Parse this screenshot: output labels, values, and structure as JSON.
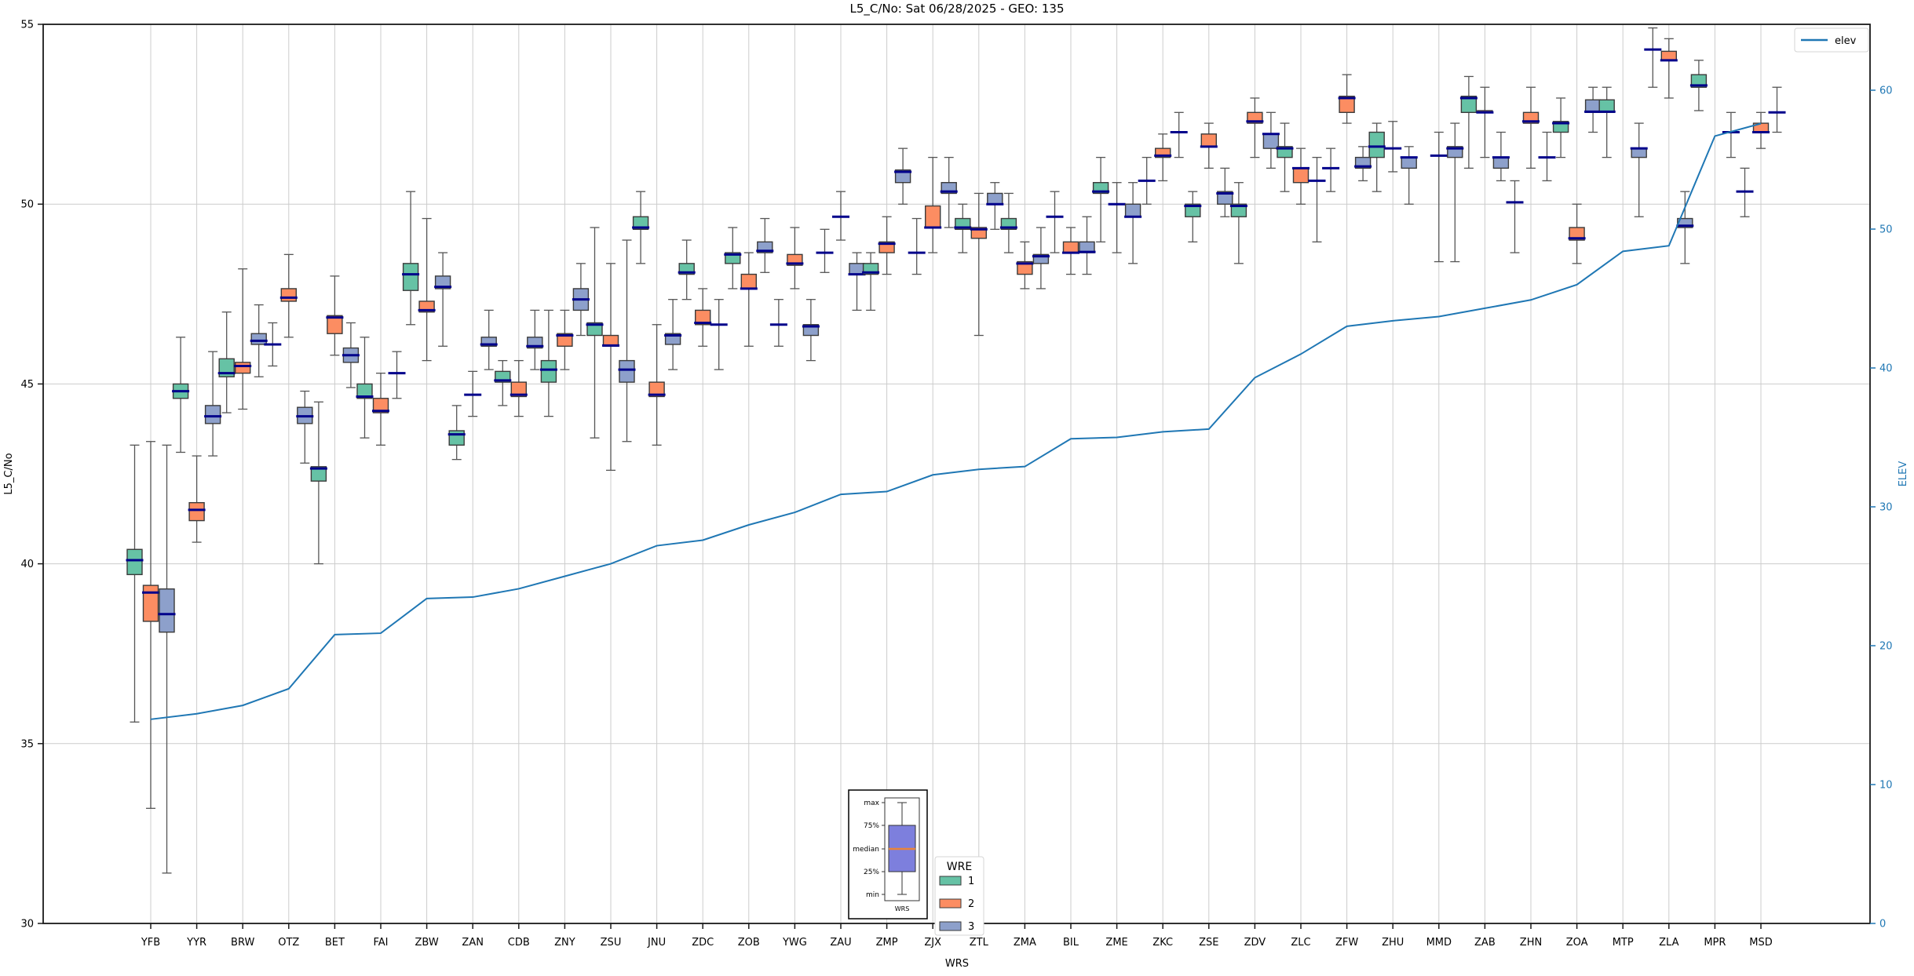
{
  "colors": {
    "wre1": "#66c2a5",
    "wre2": "#fc8d62",
    "wre3": "#8da0cb",
    "box_edge": "#3b3b3b",
    "whisker": "#555555",
    "median": "#00008b",
    "elev_line": "#1f77b4",
    "right_axis": "#1f77b4",
    "grid": "#cccccc",
    "spine": "#1a1a1a",
    "inset_box_fill": "#7d7fdd",
    "inset_median": "#e8833a",
    "legend_border": "#d4d4d4"
  },
  "chart_data": {
    "type": "boxplot+line",
    "title": "L5_C/No: Sat 06/28/2025 - GEO: 135",
    "xlabel": "WRS",
    "ylabel_left": "L5_C/No",
    "ylabel_right": "ELEV",
    "ylim_left": [
      30,
      55
    ],
    "yticks_left": [
      30,
      35,
      40,
      45,
      50,
      55
    ],
    "yticks_right": [
      0,
      10,
      20,
      30,
      40,
      50,
      60
    ],
    "grid": true,
    "legend_position": "upper right",
    "line_legend_label": "elev",
    "wre_legend": {
      "title": "WRE",
      "entries": [
        {
          "label": "1"
        },
        {
          "label": "2"
        },
        {
          "label": "3"
        }
      ]
    },
    "inset": {
      "labels": [
        "max",
        "75%",
        "median",
        "25%",
        "min"
      ],
      "xlabel": "WRS"
    },
    "categories": [
      "YFB",
      "YYR",
      "BRW",
      "OTZ",
      "BET",
      "FAI",
      "ZBW",
      "ZAN",
      "CDB",
      "ZNY",
      "ZSU",
      "JNU",
      "ZDC",
      "ZOB",
      "YWG",
      "ZAU",
      "ZMP",
      "ZJX",
      "ZTL",
      "ZMA",
      "BIL",
      "ZME",
      "ZKC",
      "ZSE",
      "ZDV",
      "ZLC",
      "ZFW",
      "ZHU",
      "MMD",
      "ZAB",
      "ZHN",
      "ZOA",
      "MTP",
      "ZLA",
      "MPR",
      "MSD"
    ],
    "elev": [
      14.7,
      15.1,
      15.7,
      16.9,
      20.8,
      20.9,
      23.4,
      23.5,
      24.1,
      25.0,
      25.9,
      27.2,
      27.6,
      28.7,
      29.6,
      30.9,
      31.1,
      32.3,
      32.7,
      32.9,
      34.9,
      35.0,
      35.4,
      35.6,
      39.3,
      41.0,
      43.0,
      43.4,
      43.7,
      44.3,
      44.9,
      46.0,
      48.4,
      48.8,
      56.7,
      57.6
    ],
    "boxes_format": "[median, q1, q3, whisker_low, whisker_high] per WRE series; q1==q3 means median-only dash",
    "boxes": [
      {
        "1": [
          40.1,
          39.7,
          40.4,
          35.6,
          43.3
        ],
        "2": [
          39.2,
          38.4,
          39.4,
          33.2,
          43.4
        ],
        "3": [
          38.6,
          38.1,
          39.3,
          31.4,
          43.3
        ]
      },
      {
        "1": [
          44.8,
          44.6,
          45.0,
          43.1,
          46.3
        ],
        "2": [
          41.5,
          41.2,
          41.7,
          40.6,
          43.0
        ],
        "3": [
          44.1,
          43.9,
          44.4,
          43.0,
          45.9
        ]
      },
      {
        "1": [
          45.3,
          45.2,
          45.7,
          44.2,
          47.0
        ],
        "2": [
          45.5,
          45.3,
          45.6,
          44.3,
          48.2
        ],
        "3": [
          46.2,
          46.1,
          46.4,
          45.2,
          47.2
        ]
      },
      {
        "1": [
          46.1,
          46.1,
          46.1,
          45.5,
          46.7
        ],
        "2": [
          47.4,
          47.3,
          47.65,
          46.3,
          48.6
        ],
        "3": [
          44.1,
          43.9,
          44.35,
          42.8,
          44.8
        ]
      },
      {
        "1": [
          42.65,
          42.3,
          42.7,
          40.0,
          44.5
        ],
        "2": [
          46.85,
          46.4,
          46.9,
          45.8,
          48.0
        ],
        "3": [
          45.8,
          45.6,
          46.0,
          44.9,
          46.7
        ]
      },
      {
        "1": [
          44.65,
          44.6,
          45.0,
          43.5,
          46.3
        ],
        "2": [
          44.25,
          44.2,
          44.6,
          43.3,
          45.3
        ],
        "3": [
          45.3,
          45.3,
          45.3,
          44.6,
          45.9
        ]
      },
      {
        "1": [
          48.05,
          47.6,
          48.35,
          46.65,
          50.35
        ],
        "2": [
          47.05,
          47.0,
          47.3,
          45.65,
          49.6
        ],
        "3": [
          47.7,
          47.65,
          48.0,
          46.05,
          48.65
        ]
      },
      {
        "1": [
          43.6,
          43.3,
          43.7,
          42.9,
          44.4
        ],
        "2": [
          44.7,
          44.7,
          44.7,
          44.1,
          45.35
        ],
        "3": [
          46.1,
          46.05,
          46.3,
          45.4,
          47.05
        ]
      },
      {
        "1": [
          45.1,
          45.05,
          45.35,
          44.4,
          45.65
        ],
        "2": [
          44.7,
          44.65,
          45.05,
          44.1,
          45.65
        ],
        "3": [
          46.05,
          46.0,
          46.3,
          45.4,
          47.05
        ]
      },
      {
        "1": [
          45.4,
          45.05,
          45.65,
          44.1,
          47.05
        ],
        "2": [
          46.35,
          46.05,
          46.4,
          45.4,
          47.05
        ],
        "3": [
          47.35,
          47.05,
          47.65,
          46.35,
          48.35
        ]
      },
      {
        "1": [
          46.65,
          46.35,
          46.7,
          43.5,
          49.35
        ],
        "2": [
          46.07,
          46.05,
          46.35,
          42.6,
          48.35
        ],
        "3": [
          45.4,
          45.05,
          45.65,
          43.4,
          49.0
        ]
      },
      {
        "1": [
          49.35,
          49.3,
          49.65,
          48.35,
          50.35
        ],
        "2": [
          44.7,
          44.65,
          45.05,
          43.3,
          46.65
        ],
        "3": [
          46.35,
          46.1,
          46.4,
          45.4,
          47.35
        ]
      },
      {
        "1": [
          48.1,
          48.05,
          48.35,
          47.35,
          49.0
        ],
        "2": [
          46.7,
          46.65,
          47.05,
          46.05,
          47.65
        ],
        "3": [
          46.65,
          46.65,
          46.65,
          45.4,
          47.35
        ]
      },
      {
        "1": [
          48.6,
          48.35,
          48.65,
          47.65,
          49.35
        ],
        "2": [
          47.65,
          47.65,
          48.05,
          46.05,
          48.65
        ],
        "3": [
          48.7,
          48.65,
          48.95,
          48.1,
          49.6
        ]
      },
      {
        "1": [
          46.65,
          46.65,
          46.65,
          46.05,
          47.35
        ],
        "2": [
          48.35,
          48.3,
          48.6,
          47.65,
          49.35
        ],
        "3": [
          46.6,
          46.35,
          46.65,
          45.65,
          47.35
        ]
      },
      {
        "1": [
          48.65,
          48.65,
          48.65,
          48.1,
          49.3
        ],
        "2": [
          49.65,
          49.65,
          49.65,
          49.0,
          50.35
        ],
        "3": [
          48.05,
          48.05,
          48.35,
          47.05,
          48.65
        ]
      },
      {
        "1": [
          48.1,
          48.05,
          48.35,
          47.05,
          48.65
        ],
        "2": [
          48.9,
          48.65,
          48.95,
          48.05,
          49.65
        ],
        "3": [
          50.9,
          50.6,
          50.95,
          50.0,
          51.55
        ]
      },
      {
        "1": [
          48.65,
          48.65,
          48.65,
          48.05,
          49.6
        ],
        "2": [
          49.35,
          49.35,
          49.95,
          48.65,
          51.3
        ],
        "3": [
          50.35,
          50.3,
          50.6,
          49.35,
          51.3
        ]
      },
      {
        "1": [
          49.35,
          49.3,
          49.6,
          48.65,
          50.0
        ],
        "2": [
          49.3,
          49.05,
          49.35,
          46.35,
          50.3
        ],
        "3": [
          50.0,
          50.0,
          50.3,
          49.3,
          50.6
        ]
      },
      {
        "1": [
          49.35,
          49.3,
          49.6,
          48.65,
          50.3
        ],
        "2": [
          48.35,
          48.05,
          48.4,
          47.65,
          48.95
        ],
        "3": [
          48.55,
          48.35,
          48.6,
          47.65,
          49.35
        ]
      },
      {
        "1": [
          49.65,
          49.65,
          49.65,
          48.65,
          50.35
        ],
        "2": [
          48.65,
          48.65,
          48.95,
          48.05,
          49.35
        ],
        "3": [
          48.67,
          48.65,
          48.95,
          48.05,
          49.65
        ]
      },
      {
        "1": [
          50.35,
          50.3,
          50.6,
          48.95,
          51.3
        ],
        "2": [
          50.0,
          50.0,
          50.0,
          48.65,
          50.6
        ],
        "3": [
          49.65,
          49.65,
          50.0,
          48.35,
          50.6
        ]
      },
      {
        "1": [
          50.65,
          50.65,
          50.65,
          50.0,
          51.3
        ],
        "2": [
          51.35,
          51.3,
          51.55,
          50.65,
          51.95
        ],
        "3": [
          52.0,
          52.0,
          52.0,
          51.3,
          52.55
        ]
      },
      {
        "1": [
          49.95,
          49.65,
          50.0,
          48.95,
          50.35
        ],
        "2": [
          51.6,
          51.6,
          51.95,
          51.0,
          52.25
        ],
        "3": [
          50.3,
          50.0,
          50.35,
          49.65,
          51.0
        ]
      },
      {
        "1": [
          49.95,
          49.65,
          50.0,
          48.35,
          50.6
        ],
        "2": [
          52.3,
          52.25,
          52.55,
          51.3,
          52.95
        ],
        "3": [
          51.95,
          51.55,
          51.95,
          51.0,
          52.55
        ]
      },
      {
        "1": [
          51.55,
          51.3,
          51.6,
          50.35,
          52.25
        ],
        "2": [
          51.0,
          50.6,
          51.0,
          50.0,
          51.55
        ],
        "3": [
          50.65,
          50.65,
          50.65,
          48.95,
          51.3
        ]
      },
      {
        "1": [
          51.0,
          51.0,
          51.0,
          50.35,
          51.55
        ],
        "2": [
          52.95,
          52.55,
          53.0,
          52.25,
          53.6
        ],
        "3": [
          51.05,
          51.0,
          51.3,
          50.65,
          51.6
        ]
      },
      {
        "1": [
          51.6,
          51.3,
          52.0,
          50.35,
          52.25
        ],
        "2": [
          51.55,
          51.55,
          51.55,
          50.9,
          52.3
        ],
        "3": [
          51.3,
          51.0,
          51.3,
          50.0,
          51.6
        ]
      },
      {
        "2": [
          51.35,
          51.35,
          51.35,
          48.4,
          52.0
        ],
        "3": [
          51.55,
          51.3,
          51.6,
          48.4,
          52.25
        ]
      },
      {
        "1": [
          52.95,
          52.55,
          53.0,
          51.0,
          53.55
        ],
        "2": [
          52.55,
          52.55,
          52.6,
          51.3,
          53.25
        ],
        "3": [
          51.3,
          51.0,
          51.3,
          50.65,
          52.0
        ]
      },
      {
        "1": [
          50.05,
          50.05,
          50.05,
          48.65,
          50.65
        ],
        "2": [
          52.3,
          52.25,
          52.55,
          51.0,
          53.25
        ],
        "3": [
          51.3,
          51.3,
          51.3,
          50.65,
          52.0
        ]
      },
      {
        "1": [
          52.25,
          52.0,
          52.3,
          51.3,
          52.95
        ],
        "2": [
          49.05,
          49.0,
          49.35,
          48.35,
          50.0
        ],
        "3": [
          52.57,
          52.55,
          52.9,
          52.0,
          53.25
        ]
      },
      {
        "1": [
          52.57,
          52.55,
          52.9,
          51.3,
          53.25
        ],
        "3": [
          51.55,
          51.3,
          51.55,
          49.65,
          52.25
        ]
      },
      {
        "1": [
          54.3,
          54.3,
          54.3,
          53.25,
          54.9
        ],
        "2": [
          54.0,
          54.0,
          54.25,
          52.95,
          54.6
        ],
        "3": [
          49.4,
          49.35,
          49.6,
          48.35,
          50.35
        ]
      },
      {
        "1": [
          53.3,
          53.25,
          53.6,
          52.6,
          54.0
        ],
        "3": [
          52.0,
          52.0,
          52.0,
          51.3,
          52.55
        ]
      },
      {
        "1": [
          50.35,
          50.35,
          50.35,
          49.65,
          51.0
        ],
        "2": [
          52.0,
          52.0,
          52.25,
          51.55,
          52.55
        ],
        "3": [
          52.55,
          52.55,
          52.55,
          52.0,
          53.25
        ]
      }
    ]
  }
}
